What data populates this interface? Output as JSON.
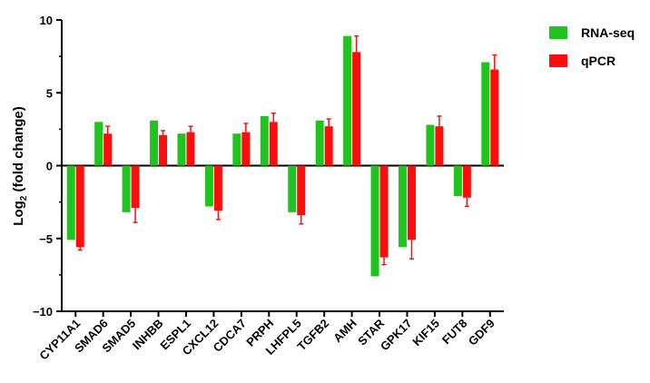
{
  "chart_data": {
    "type": "bar",
    "title": "",
    "xlabel": "",
    "ylabel_main": "Log",
    "ylabel_sub": "2",
    "ylabel_rest": " (fold change)",
    "ylim": [
      -10,
      10
    ],
    "yticks": [
      "10",
      "5",
      "0",
      "−5",
      "−10"
    ],
    "ytick_values": [
      10,
      5,
      0,
      -5,
      -10
    ],
    "grid": false,
    "legend_position": "top-right",
    "categories": [
      "CYP11A1",
      "SMAD6",
      "SMAD5",
      "INHBB",
      "ESPL1",
      "CXCL12",
      "CDCA7",
      "PRPH",
      "LHFPL5",
      "TGFB2",
      "AMH",
      "STAR",
      "GPK17",
      "KIF15",
      "FUT8",
      "GDF9"
    ],
    "series": [
      {
        "name": "RNA-seq",
        "color": "#1fc41f",
        "values": [
          -5.1,
          3.0,
          -3.2,
          3.1,
          2.2,
          -2.8,
          2.2,
          3.4,
          -3.2,
          3.1,
          8.9,
          -7.6,
          -5.6,
          2.8,
          -2.1,
          7.1
        ]
      },
      {
        "name": "qPCR",
        "color": "#ff0d0d",
        "values": [
          -5.6,
          2.2,
          -2.9,
          2.1,
          2.3,
          -3.1,
          2.3,
          3.0,
          -3.4,
          2.7,
          7.8,
          -6.3,
          -5.1,
          2.7,
          -2.2,
          6.6
        ],
        "errors": [
          0.2,
          0.5,
          1.0,
          0.3,
          0.4,
          0.6,
          0.6,
          0.6,
          0.6,
          0.5,
          1.1,
          0.5,
          1.3,
          0.7,
          0.6,
          1.0
        ]
      }
    ]
  }
}
